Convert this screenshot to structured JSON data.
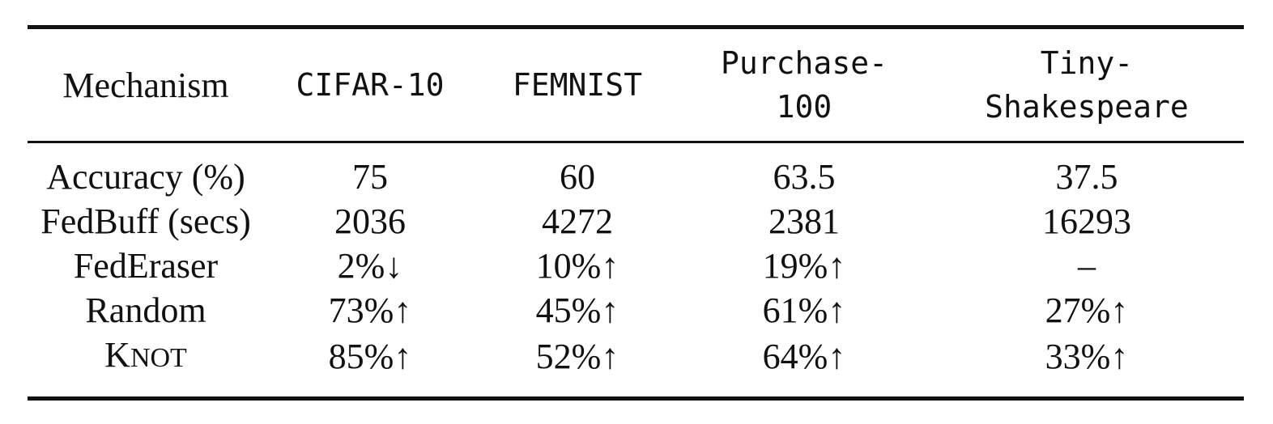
{
  "table": {
    "headers": {
      "mechanism": "Mechanism",
      "cifar10": "CIFAR-10",
      "femnist": "FEMNIST",
      "purchase100_line1": "Purchase-",
      "purchase100_line2": "100",
      "tinyshakespeare_line1": "Tiny-",
      "tinyshakespeare_line2": "Shakespeare"
    },
    "rows": [
      {
        "label": "Accuracy (%)",
        "cifar10": "75",
        "femnist": "60",
        "purchase100": "63.5",
        "tinyshakespeare": "37.5"
      },
      {
        "label": "FedBuff (secs)",
        "cifar10": "2036",
        "femnist": "4272",
        "purchase100": "2381",
        "tinyshakespeare": "16293"
      },
      {
        "label": "FedEraser",
        "cifar10": "2%↓",
        "femnist": "10%↑",
        "purchase100": "19%↑",
        "tinyshakespeare": "–"
      },
      {
        "label": "Random",
        "cifar10": "73%↑",
        "femnist": "45%↑",
        "purchase100": "61%↑",
        "tinyshakespeare": "27%↑"
      },
      {
        "label_first_letter": "K",
        "label_rest": "NOT",
        "cifar10": "85%↑",
        "femnist": "52%↑",
        "purchase100": "64%↑",
        "tinyshakespeare": "33%↑"
      }
    ]
  }
}
